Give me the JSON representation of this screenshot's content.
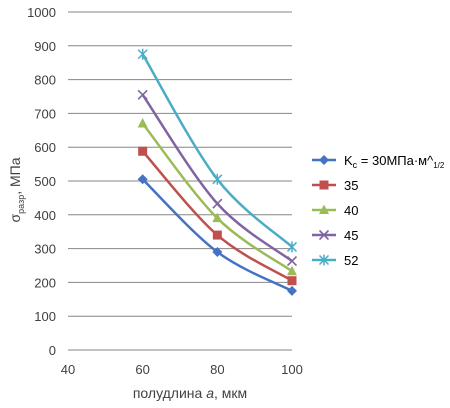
{
  "chart_data": {
    "type": "line",
    "title": "",
    "xlabel": "полудлина a, мкм",
    "ylabel": "σразр, МПа",
    "xlim": [
      40,
      100
    ],
    "ylim": [
      0,
      1000
    ],
    "x_ticks": [
      "40",
      "60",
      "80",
      "100"
    ],
    "y_ticks": [
      "0",
      "100",
      "200",
      "300",
      "400",
      "500",
      "600",
      "700",
      "800",
      "900",
      "1000"
    ],
    "grid": "horizontal",
    "legend_position": "right",
    "x": [
      60,
      80,
      100
    ],
    "series": [
      {
        "name": "Kc = 30МПа·м^1/2",
        "values": [
          505,
          290,
          175
        ],
        "color": "#4472C4",
        "marker": "diamond"
      },
      {
        "name": "35",
        "values": [
          588,
          340,
          205
        ],
        "color": "#C0504D",
        "marker": "square"
      },
      {
        "name": "40",
        "values": [
          670,
          390,
          233
        ],
        "color": "#9BBB59",
        "marker": "triangle"
      },
      {
        "name": "45",
        "values": [
          755,
          433,
          263
        ],
        "color": "#8064A2",
        "marker": "x"
      },
      {
        "name": "52",
        "values": [
          875,
          505,
          305
        ],
        "color": "#4BACC6",
        "marker": "star"
      }
    ]
  },
  "labels": {
    "xlabel_main": "полудлина ",
    "xlabel_var": "a",
    "xlabel_unit": ", мкм",
    "ylabel_sigma": "σ",
    "ylabel_sub": "разр",
    "ylabel_unit": ", МПа",
    "legend_first_k": "K",
    "legend_first_k_sub": "c",
    "legend_first_rest": " = 30МПа·м^",
    "legend_first_exp": "1/2"
  }
}
